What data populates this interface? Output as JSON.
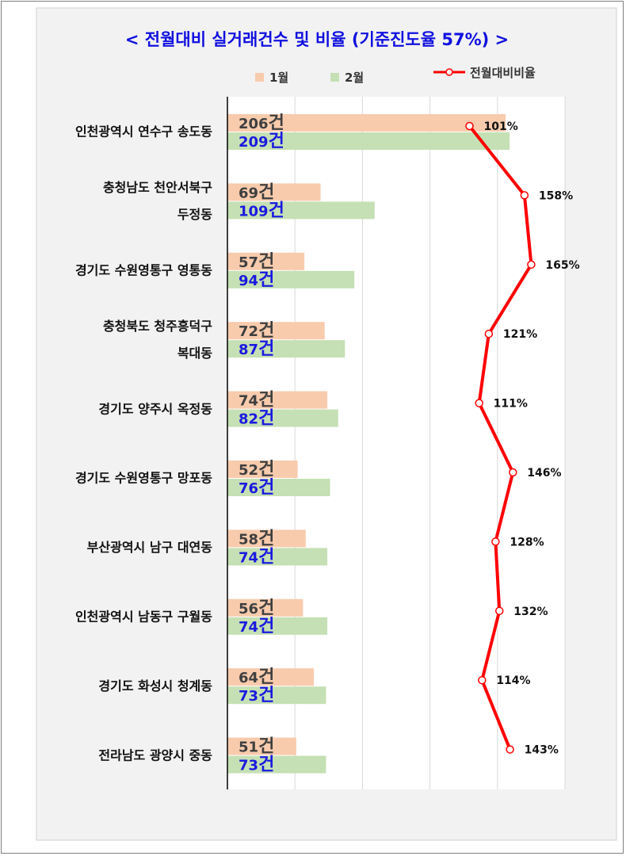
{
  "chart_data": {
    "type": "bar",
    "orientation": "horizontal",
    "title": "< 전월대비 실거래건수 및 비율 (기준진도율 57%) >",
    "categories": [
      "인천광역시 연수구 송도동",
      "충청남도 천안서북구 두정동",
      "경기도 수원영통구 영통동",
      "충청북도 청주흥덕구 복대동",
      "경기도 양주시 옥정동",
      "경기도 수원영통구 망포동",
      "부산광역시 남구 대연동",
      "인천광역시 남동구 구월동",
      "경기도 화성시 청계동",
      "전라남도 광양시 중동"
    ],
    "category_lines": [
      [
        "인천광역시 연수구 송도동"
      ],
      [
        "충청남도 천안서북구",
        "두정동"
      ],
      [
        "경기도 수원영통구 영통동"
      ],
      [
        "충청북도 청주흥덕구",
        "복대동"
      ],
      [
        "경기도 양주시 옥정동"
      ],
      [
        "경기도 수원영통구 망포동"
      ],
      [
        "부산광역시 남구 대연동"
      ],
      [
        "인천광역시 남동구 구월동"
      ],
      [
        "경기도 화성시 청계동"
      ],
      [
        "전라남도 광양시 중동"
      ]
    ],
    "series": [
      {
        "name": "1월",
        "color": "#f8cbad",
        "values": [
          206,
          69,
          57,
          72,
          74,
          52,
          58,
          56,
          64,
          51
        ],
        "labels": [
          "206",
          "69",
          "57",
          "72",
          "74",
          "52",
          "58",
          "56",
          "64",
          "51"
        ]
      },
      {
        "name": "2월",
        "color": "#c5e0b4",
        "values": [
          209,
          109,
          94,
          87,
          82,
          76,
          74,
          74,
          73,
          73
        ],
        "labels": [
          "209",
          "109",
          "94",
          "87",
          "82",
          "76",
          "74",
          "74",
          "73",
          "73"
        ]
      }
    ],
    "unit": "건",
    "ratio_series": {
      "name": "전월대비비율",
      "color": "#ff0000",
      "values": [
        101,
        158,
        165,
        121,
        111,
        146,
        128,
        132,
        114,
        143
      ],
      "labels": [
        "101%",
        "158%",
        "165%",
        "121%",
        "111%",
        "146%",
        "128%",
        "132%",
        "114%",
        "143%"
      ]
    },
    "xlim": [
      0,
      250
    ],
    "ratio_xlim": [
      -150,
      200
    ],
    "grid": true,
    "legend_position": "top"
  }
}
